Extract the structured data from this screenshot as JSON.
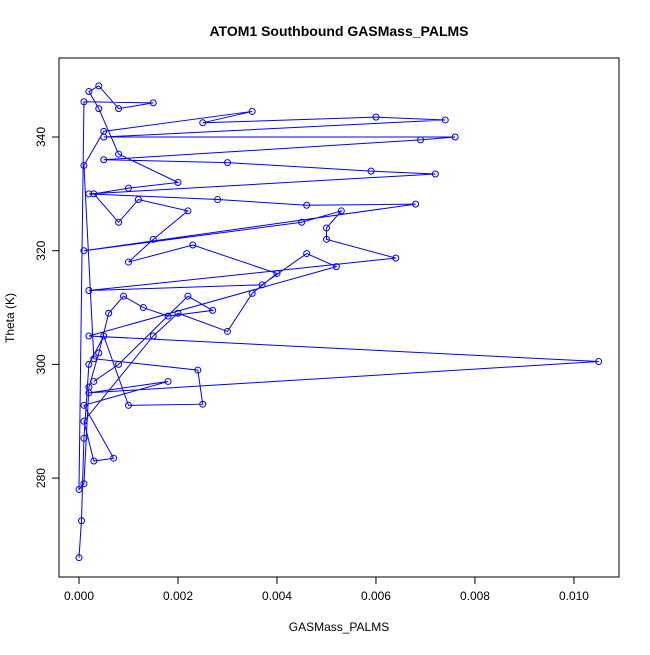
{
  "chart_data": {
    "type": "line_points",
    "title": "ATOM1 Southbound GASMass_PALMS",
    "xlabel": "GASMass_PALMS",
    "ylabel": "Theta (K)",
    "color": "#0000ff",
    "x": [
      0.0,
      5e-05,
      0.0001,
      0.0002,
      0.0005,
      0.001,
      0.0025,
      0.0024,
      0.0003,
      0.0001,
      0.0005,
      0.0035,
      0.0025,
      0.006,
      0.0074,
      0.0005,
      0.0076,
      0.0069,
      0.0005,
      0.003,
      0.0059,
      0.0072,
      0.0002,
      0.0028,
      0.0046,
      0.0068,
      0.0001,
      0.0045,
      0.0053,
      0.005,
      0.005,
      0.0064,
      0.0002,
      0.0037,
      0.0046,
      0.0052,
      0.0002,
      0.0105,
      0.0002,
      0.0018,
      0.0001,
      0.0007,
      0.0003,
      0.0001,
      0.0015,
      0.002,
      0.003,
      0.0035,
      0.004,
      0.0023,
      0.001,
      0.0015,
      0.0022,
      0.0012,
      0.0008,
      0.0003,
      0.001,
      0.002,
      0.0008,
      0.0004,
      0.0002,
      0.0004,
      0.0008,
      0.0015,
      0.0001,
      0.0,
      0.0001,
      0.0002,
      0.0004,
      0.0006,
      0.0009,
      0.0013,
      0.0018,
      0.0027,
      0.0022,
      0.0008,
      0.0003
    ],
    "values": [
      266,
      272.5,
      287,
      300,
      305,
      292.8,
      293,
      299,
      301,
      335,
      341,
      344.5,
      342.5,
      343.5,
      343,
      340,
      340,
      339.5,
      336,
      335.5,
      334,
      333.5,
      330,
      329,
      328,
      328.2,
      320,
      325,
      327,
      324,
      322,
      318.7,
      313,
      314,
      319.5,
      317.2,
      305,
      300.5,
      295,
      297,
      292.8,
      283.5,
      283,
      290,
      305,
      309,
      305.8,
      312.5,
      316,
      321,
      318,
      322,
      327,
      329,
      325,
      330,
      331,
      332,
      337,
      345,
      348,
      349,
      345,
      346,
      346.2,
      278,
      279,
      296,
      302,
      309,
      312,
      310,
      308.5,
      309.5,
      312,
      300,
      297
    ],
    "xlim": [
      -0.000404,
      0.01091
    ],
    "ylim": [
      262.6,
      353.9
    ],
    "xticks": [
      {
        "value": 0,
        "label": "0.000"
      },
      {
        "value": 0.002,
        "label": "0.002"
      },
      {
        "value": 0.004,
        "label": "0.004"
      },
      {
        "value": 0.006,
        "label": "0.006"
      },
      {
        "value": 0.008,
        "label": "0.008"
      },
      {
        "value": 0.01,
        "label": "0.010"
      }
    ],
    "yticks": [
      280,
      300,
      320,
      340
    ]
  }
}
